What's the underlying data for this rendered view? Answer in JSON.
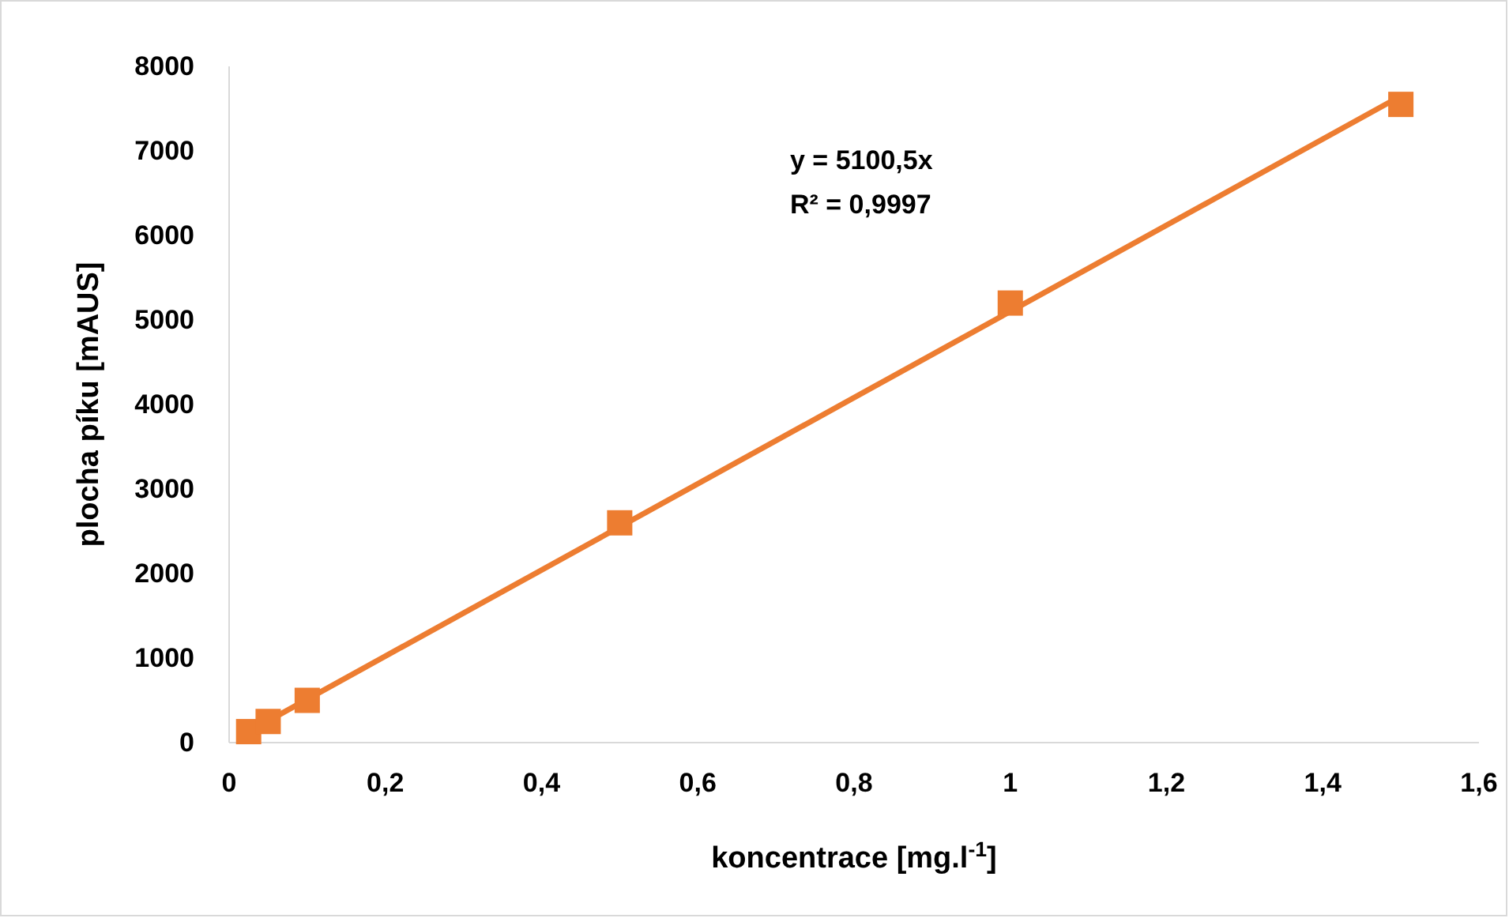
{
  "chart_data": {
    "type": "scatter",
    "xlabel": "koncentrace [mg.l$^{-1}$]",
    "ylabel": "plocha píku [mAUS]",
    "xlim": [
      0,
      1.6
    ],
    "xticks": [
      0,
      {
        "value": 0.2,
        "label": "0,2"
      },
      {
        "value": 0.4,
        "label": "0,4"
      },
      {
        "value": 0.6,
        "label": "0,6"
      },
      {
        "value": 0.8,
        "label": "0,8"
      },
      1,
      {
        "value": 1.2,
        "label": "1,2"
      },
      {
        "value": 1.4,
        "label": "1,4"
      },
      {
        "value": 1.6,
        "label": "1,6"
      }
    ],
    "ylim": [
      0,
      8000
    ],
    "yticks": [
      0,
      1000,
      2000,
      3000,
      4000,
      5000,
      6000,
      7000,
      8000
    ],
    "grid": false,
    "series": [
      {
        "type": "line",
        "color": "#ed7d31",
        "marker": "none",
        "x": [
          0.025,
          1.5
        ],
        "values": [
          130,
          7650
        ]
      },
      {
        "color": "#ed7d31",
        "marker": "square",
        "x": [
          0.025,
          0.05,
          0.1,
          0.5,
          1,
          1.5
        ],
        "values": [
          130,
          250,
          500,
          2600,
          5200,
          7550
        ]
      }
    ],
    "annotations": [
      "y = 5100,5x",
      "R² = 0,9997"
    ]
  }
}
